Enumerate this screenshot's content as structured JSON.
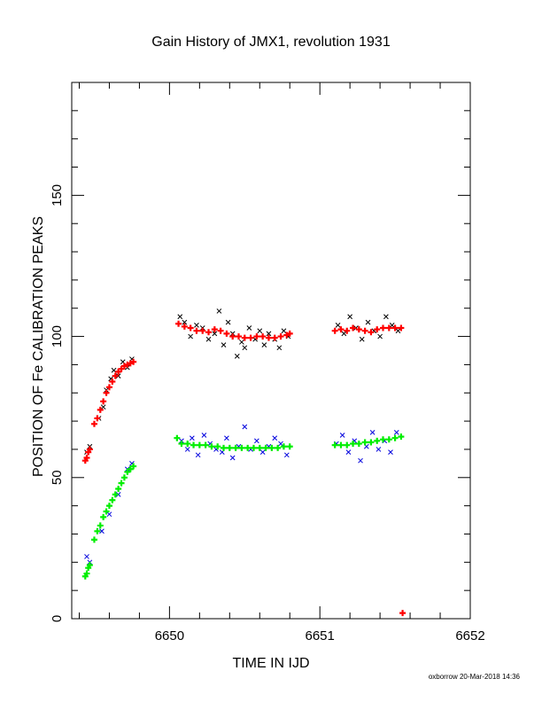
{
  "chart_data": {
    "type": "scatter",
    "title": "Gain History of JMX1, revolution 1931",
    "xlabel": "TIME IN IJD",
    "ylabel": "POSITION OF Fe CALIBRATION PEAKS",
    "xlim": [
      6649.35,
      6652.0
    ],
    "ylim": [
      0,
      190
    ],
    "x_ticks": [
      "6650",
      "6651",
      "6652"
    ],
    "y_ticks": [
      "0",
      "50",
      "100",
      "150"
    ],
    "x_tick_values": [
      6650,
      6651,
      6652
    ],
    "y_tick_values": [
      0,
      50,
      100,
      150
    ],
    "grid": false,
    "footer": "oxborrow 20-Mar-2018 14:36",
    "series": [
      {
        "marker": "x",
        "color": "#000000",
        "x": [
          6649.45,
          6649.47,
          6649.53,
          6649.56,
          6649.58,
          6649.61,
          6649.63,
          6649.66,
          6649.69,
          6649.72,
          6649.75,
          6650.07,
          6650.1,
          6650.14,
          6650.18,
          6650.22,
          6650.26,
          6650.3,
          6650.33,
          6650.36,
          6650.39,
          6650.42,
          6650.45,
          6650.48,
          6650.5,
          6650.53,
          6650.57,
          6650.6,
          6650.63,
          6650.66,
          6650.7,
          6650.73,
          6650.76,
          6650.79,
          6651.12,
          6651.16,
          6651.2,
          6651.24,
          6651.28,
          6651.32,
          6651.36,
          6651.4,
          6651.44,
          6651.48,
          6651.52
        ],
        "y": [
          59,
          61,
          71,
          75,
          81,
          85,
          88,
          86,
          91,
          89,
          92,
          107,
          105,
          100,
          104,
          103,
          99,
          101,
          109,
          97,
          105,
          101,
          93,
          98,
          96,
          103,
          99,
          102,
          97,
          101,
          99,
          96,
          102,
          100,
          104,
          101,
          107,
          103,
          99,
          105,
          102,
          100,
          107,
          104,
          102
        ]
      },
      {
        "marker": "x",
        "color": "#0000dd",
        "x": [
          6649.45,
          6649.47,
          6649.55,
          6649.6,
          6649.66,
          6649.72,
          6649.75,
          6650.08,
          6650.12,
          6650.15,
          6650.19,
          6650.23,
          6650.27,
          6650.31,
          6650.35,
          6650.38,
          6650.42,
          6650.46,
          6650.5,
          6650.54,
          6650.58,
          6650.62,
          6650.66,
          6650.7,
          6650.74,
          6650.78,
          6651.11,
          6651.15,
          6651.19,
          6651.23,
          6651.27,
          6651.31,
          6651.35,
          6651.39,
          6651.43,
          6651.47,
          6651.51
        ],
        "y": [
          22,
          20,
          31,
          37,
          44,
          53,
          55,
          63,
          60,
          64,
          58,
          65,
          62,
          60,
          59,
          64,
          57,
          61,
          68,
          60,
          63,
          59,
          61,
          64,
          62,
          58,
          62,
          65,
          59,
          63,
          56,
          61,
          66,
          60,
          63,
          59,
          66
        ]
      },
      {
        "marker": "plus",
        "color": "#ff0000",
        "x": [
          6649.44,
          6649.45,
          6649.46,
          6649.47,
          6649.5,
          6649.52,
          6649.54,
          6649.56,
          6649.58,
          6649.6,
          6649.62,
          6649.64,
          6649.66,
          6649.68,
          6649.7,
          6649.72,
          6649.74,
          6649.76,
          6650.06,
          6650.1,
          6650.14,
          6650.18,
          6650.22,
          6650.26,
          6650.3,
          6650.34,
          6650.38,
          6650.42,
          6650.46,
          6650.5,
          6650.54,
          6650.58,
          6650.62,
          6650.66,
          6650.7,
          6650.74,
          6650.78,
          6650.8,
          6651.1,
          6651.14,
          6651.18,
          6651.22,
          6651.26,
          6651.3,
          6651.34,
          6651.38,
          6651.42,
          6651.46,
          6651.5,
          6651.54,
          6651.55
        ],
        "y": [
          56,
          57,
          59,
          60,
          69,
          71,
          74,
          77,
          80,
          82,
          84,
          86,
          87.5,
          88.5,
          89.5,
          90,
          90.5,
          91,
          104.5,
          103.5,
          103,
          102,
          102,
          101.5,
          102.5,
          102,
          101,
          100,
          100,
          99.5,
          99.5,
          100,
          100,
          99.5,
          99.5,
          100,
          100.5,
          101,
          102,
          102.5,
          102,
          103,
          102.5,
          102,
          101.5,
          102.5,
          103,
          103,
          103,
          103,
          2
        ]
      },
      {
        "marker": "plus",
        "color": "#00ee00",
        "x": [
          6649.44,
          6649.45,
          6649.46,
          6649.47,
          6649.5,
          6649.52,
          6649.54,
          6649.56,
          6649.58,
          6649.6,
          6649.62,
          6649.64,
          6649.66,
          6649.68,
          6649.7,
          6649.72,
          6649.74,
          6649.76,
          6650.05,
          6650.08,
          6650.12,
          6650.16,
          6650.2,
          6650.24,
          6650.28,
          6650.32,
          6650.36,
          6650.4,
          6650.44,
          6650.48,
          6650.52,
          6650.56,
          6650.6,
          6650.64,
          6650.68,
          6650.72,
          6650.76,
          6650.8,
          6651.1,
          6651.14,
          6651.18,
          6651.22,
          6651.26,
          6651.3,
          6651.34,
          6651.38,
          6651.42,
          6651.46,
          6651.5,
          6651.54
        ],
        "y": [
          15,
          16,
          18,
          19,
          28,
          31,
          33,
          36,
          38,
          40,
          42,
          44,
          46,
          48,
          50,
          52,
          53,
          54,
          64,
          62,
          62,
          61.5,
          61.5,
          61.5,
          61,
          61,
          60.5,
          60.5,
          60.5,
          60.5,
          60.5,
          60.5,
          60.5,
          60.5,
          60.5,
          60.5,
          61,
          61,
          61.5,
          61.5,
          61.5,
          62,
          62,
          62.5,
          62.5,
          63,
          63.5,
          63.5,
          64,
          64.5
        ]
      }
    ]
  }
}
